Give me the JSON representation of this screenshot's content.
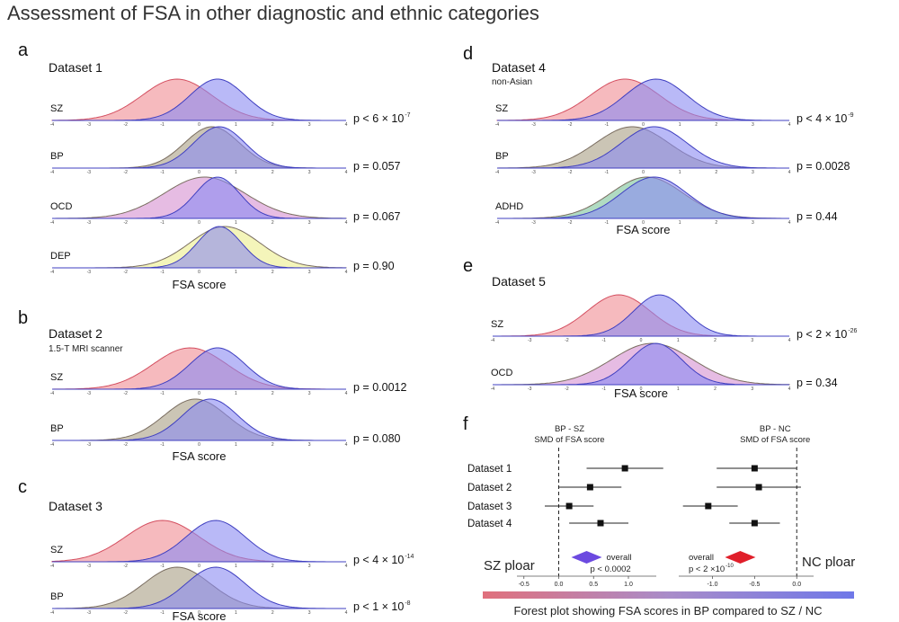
{
  "title": "Assessment of FSA in other diagnostic and ethnic categories",
  "colors": {
    "SZ": "#f08c93",
    "BP": "#a89f84",
    "OCD": "#d58fd0",
    "DEP": "#ecee8c",
    "ADHD": "#7cc39a",
    "NC": "#8b8af2",
    "outline": "#3f3fc0",
    "sz_outline": "#d44f60"
  },
  "panels": [
    {
      "letter": "a",
      "title": "Dataset 1",
      "subtitle": "",
      "xlabel": "FSA score",
      "rows": [
        {
          "label": "SZ",
          "group": "SZ",
          "p": "p < 6 × 10",
          "p_exp": "-7",
          "nc": {
            "mu": 0.5,
            "sd": 0.75
          },
          "dx": {
            "mu": -0.6,
            "sd": 0.95
          }
        },
        {
          "label": "BP",
          "group": "BP",
          "p": "p = 0.057",
          "p_exp": "",
          "nc": {
            "mu": 0.55,
            "sd": 0.7
          },
          "dx": {
            "mu": 0.35,
            "sd": 0.75
          }
        },
        {
          "label": "OCD",
          "group": "OCD",
          "p": "p = 0.067",
          "p_exp": "",
          "nc": {
            "mu": 0.5,
            "sd": 0.6
          },
          "dx": {
            "mu": 0.15,
            "sd": 1.1
          }
        },
        {
          "label": "DEP",
          "group": "DEP",
          "p": "p = 0.90",
          "p_exp": "",
          "nc": {
            "mu": 0.55,
            "sd": 0.6
          },
          "dx": {
            "mu": 0.7,
            "sd": 0.95
          }
        }
      ]
    },
    {
      "letter": "b",
      "title": "Dataset 2",
      "subtitle": "1.5-T MRI scanner",
      "xlabel": "FSA score",
      "rows": [
        {
          "label": "SZ",
          "group": "SZ",
          "p": "p = 0.0012",
          "p_exp": "",
          "nc": {
            "mu": 0.5,
            "sd": 0.75
          },
          "dx": {
            "mu": -0.25,
            "sd": 1.0
          }
        },
        {
          "label": "BP",
          "group": "BP",
          "p": "p = 0.080",
          "p_exp": "",
          "nc": {
            "mu": 0.3,
            "sd": 0.75
          },
          "dx": {
            "mu": -0.1,
            "sd": 0.85
          }
        }
      ]
    },
    {
      "letter": "c",
      "title": "Dataset 3",
      "subtitle": "",
      "xlabel": "FSA score",
      "rows": [
        {
          "label": "SZ",
          "group": "SZ",
          "p": "p < 4 × 10",
          "p_exp": "-14",
          "nc": {
            "mu": 0.45,
            "sd": 0.8
          },
          "dx": {
            "mu": -1.0,
            "sd": 1.0
          }
        },
        {
          "label": "BP",
          "group": "BP",
          "p": "p < 1 × 10",
          "p_exp": "-8",
          "nc": {
            "mu": 0.45,
            "sd": 0.8
          },
          "dx": {
            "mu": -0.6,
            "sd": 0.9
          }
        }
      ]
    },
    {
      "letter": "d",
      "title": "Dataset 4",
      "subtitle": "non-Asian",
      "xlabel": "FSA score",
      "rows": [
        {
          "label": "SZ",
          "group": "SZ",
          "p": "p < 4 × 10",
          "p_exp": "-9",
          "nc": {
            "mu": 0.35,
            "sd": 0.85
          },
          "dx": {
            "mu": -0.5,
            "sd": 0.95
          }
        },
        {
          "label": "BP",
          "group": "BP",
          "p": "p = 0.0028",
          "p_exp": "",
          "nc": {
            "mu": 0.3,
            "sd": 0.9
          },
          "dx": {
            "mu": -0.3,
            "sd": 1.0
          }
        },
        {
          "label": "ADHD",
          "group": "ADHD",
          "p": "p = 0.44",
          "p_exp": "",
          "nc": {
            "mu": 0.3,
            "sd": 0.9
          },
          "dx": {
            "mu": 0.1,
            "sd": 1.0
          }
        }
      ]
    },
    {
      "letter": "e",
      "title": "Dataset 5",
      "subtitle": "",
      "xlabel": "FSA score",
      "rows": [
        {
          "label": "SZ",
          "group": "SZ",
          "p": "p < 2 × 10",
          "p_exp": "-26",
          "nc": {
            "mu": 0.5,
            "sd": 0.7
          },
          "dx": {
            "mu": -0.6,
            "sd": 0.85
          }
        },
        {
          "label": "OCD",
          "group": "OCD",
          "p": "p = 0.34",
          "p_exp": "",
          "nc": {
            "mu": 0.4,
            "sd": 0.7
          },
          "dx": {
            "mu": 0.3,
            "sd": 1.1
          }
        }
      ]
    }
  ],
  "density_axis": {
    "ticks": [
      "-4",
      "-3",
      "-2",
      "-1",
      "0",
      "1",
      "2",
      "3",
      "4"
    ],
    "xlim": [
      -4,
      4
    ]
  },
  "chart_data": {
    "type": "scatter",
    "title": "Forest plot showing FSA scores in BP compared to SZ / NC",
    "categories": [
      "Dataset 1",
      "Dataset 2",
      "Dataset 3",
      "Dataset 4"
    ],
    "left": {
      "header": [
        "BP - SZ",
        "SMD of FSA score"
      ],
      "xlim": [
        -0.6,
        1.4
      ],
      "ticks": [
        "-0.5",
        "0.0",
        "0.5",
        "1.0"
      ],
      "tick_values": [
        -0.5,
        0.0,
        0.5,
        1.0
      ],
      "estimates": [
        0.95,
        0.45,
        0.15,
        0.6
      ],
      "ci_low": [
        0.4,
        0.0,
        -0.2,
        0.15
      ],
      "ci_high": [
        1.5,
        0.9,
        0.5,
        1.0
      ],
      "overall": {
        "estimate": 0.4,
        "label": "overall",
        "p": "p < 0.0002"
      },
      "pole_label": "SZ ploar"
    },
    "right": {
      "header": [
        "BP - NC",
        "SMD of FSA score"
      ],
      "xlim": [
        -1.4,
        0.2
      ],
      "ticks": [
        "-1.0",
        "-0.5",
        "0.0"
      ],
      "tick_values": [
        -1.0,
        -0.5,
        0.0
      ],
      "estimates": [
        -0.5,
        -0.45,
        -1.05,
        -0.5
      ],
      "ci_low": [
        -0.95,
        -0.95,
        -1.35,
        -0.8
      ],
      "ci_high": [
        0.0,
        0.05,
        -0.7,
        -0.2
      ],
      "overall": {
        "estimate": -0.67,
        "label": "overall",
        "p": "p < 2 ×10",
        "p_exp": "-10"
      },
      "pole_label": "NC ploar"
    }
  }
}
